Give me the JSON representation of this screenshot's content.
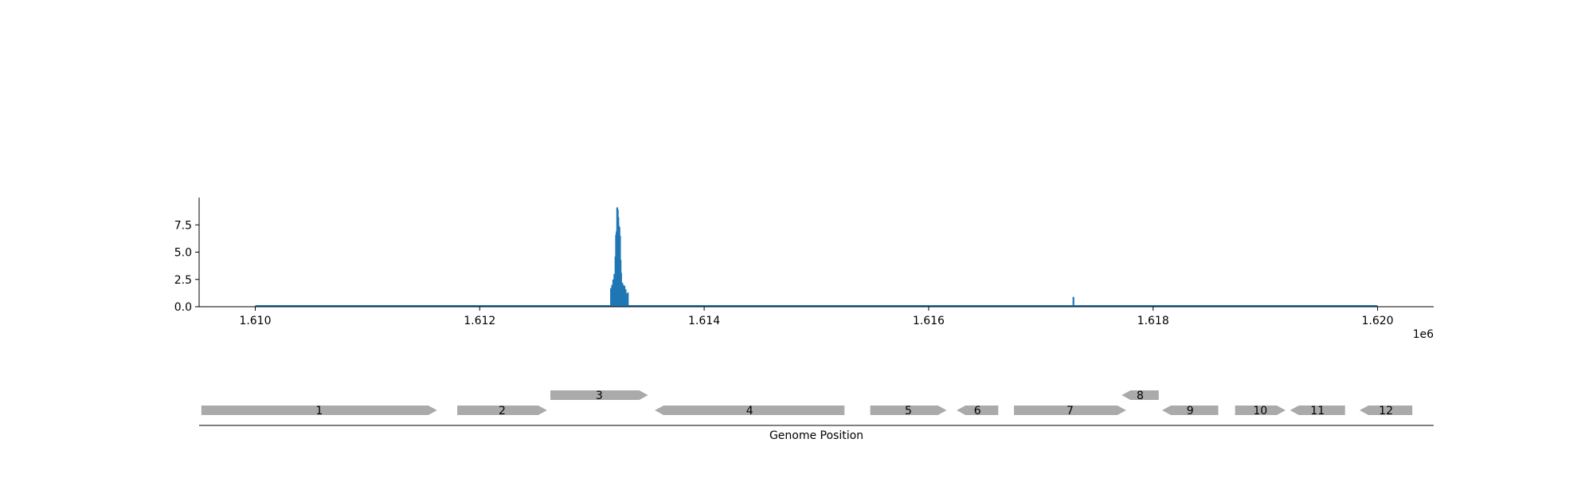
{
  "chart_data": [
    {
      "type": "bar",
      "title": "",
      "xlabel": "",
      "ylabel": "",
      "x_offset_label": "1e6",
      "xlim": [
        1609500,
        1620500
      ],
      "ylim": [
        0,
        10
      ],
      "x_ticks": [
        1610000,
        1612000,
        1614000,
        1616000,
        1618000,
        1620000
      ],
      "x_tick_labels": [
        "1.610",
        "1.612",
        "1.614",
        "1.616",
        "1.618",
        "1.620"
      ],
      "y_ticks": [
        0,
        2.5,
        5,
        7.5
      ],
      "y_tick_labels": [
        "0.0",
        "2.5",
        "5.0",
        "7.5"
      ],
      "baseline_range": [
        1610000,
        1620000
      ],
      "color": "#1f77b4",
      "grid": false,
      "x": [
        1613170,
        1613180,
        1613190,
        1613200,
        1613210,
        1613215,
        1613220,
        1613225,
        1613230,
        1613235,
        1613240,
        1613245,
        1613250,
        1613255,
        1613260,
        1613270,
        1613280,
        1613290,
        1613300,
        1613310,
        1613320,
        1617290
      ],
      "values": [
        1.7,
        2.0,
        2.5,
        3.0,
        4.6,
        6.6,
        6.9,
        9.1,
        8.9,
        8.2,
        7.4,
        7.3,
        6.5,
        4.3,
        3.1,
        2.2,
        2.0,
        1.9,
        1.6,
        1.2,
        1.3,
        0.9
      ]
    },
    {
      "type": "gene_map",
      "xlabel": "Genome Position",
      "xlim": [
        1609500,
        1620500
      ],
      "color": "#aaaaaa",
      "genes": [
        {
          "label": "1",
          "start": 1609520,
          "end": 1611620,
          "strand": "+",
          "row": 0
        },
        {
          "label": "2",
          "start": 1611800,
          "end": 1612600,
          "strand": "+",
          "row": 0
        },
        {
          "label": "3",
          "start": 1612630,
          "end": 1613500,
          "strand": "+",
          "row": 1
        },
        {
          "label": "4",
          "start": 1613560,
          "end": 1615250,
          "strand": "-",
          "row": 0
        },
        {
          "label": "5",
          "start": 1615480,
          "end": 1616160,
          "strand": "+",
          "row": 0
        },
        {
          "label": "6",
          "start": 1616250,
          "end": 1616620,
          "strand": "-",
          "row": 0
        },
        {
          "label": "7",
          "start": 1616760,
          "end": 1617760,
          "strand": "+",
          "row": 0
        },
        {
          "label": "8",
          "start": 1617720,
          "end": 1618050,
          "strand": "-",
          "row": 1
        },
        {
          "label": "9",
          "start": 1618080,
          "end": 1618580,
          "strand": "-",
          "row": 0
        },
        {
          "label": "10",
          "start": 1618730,
          "end": 1619180,
          "strand": "+",
          "row": 0
        },
        {
          "label": "11",
          "start": 1619220,
          "end": 1619710,
          "strand": "-",
          "row": 0
        },
        {
          "label": "12",
          "start": 1619840,
          "end": 1620310,
          "strand": "-",
          "row": 0
        }
      ]
    }
  ]
}
